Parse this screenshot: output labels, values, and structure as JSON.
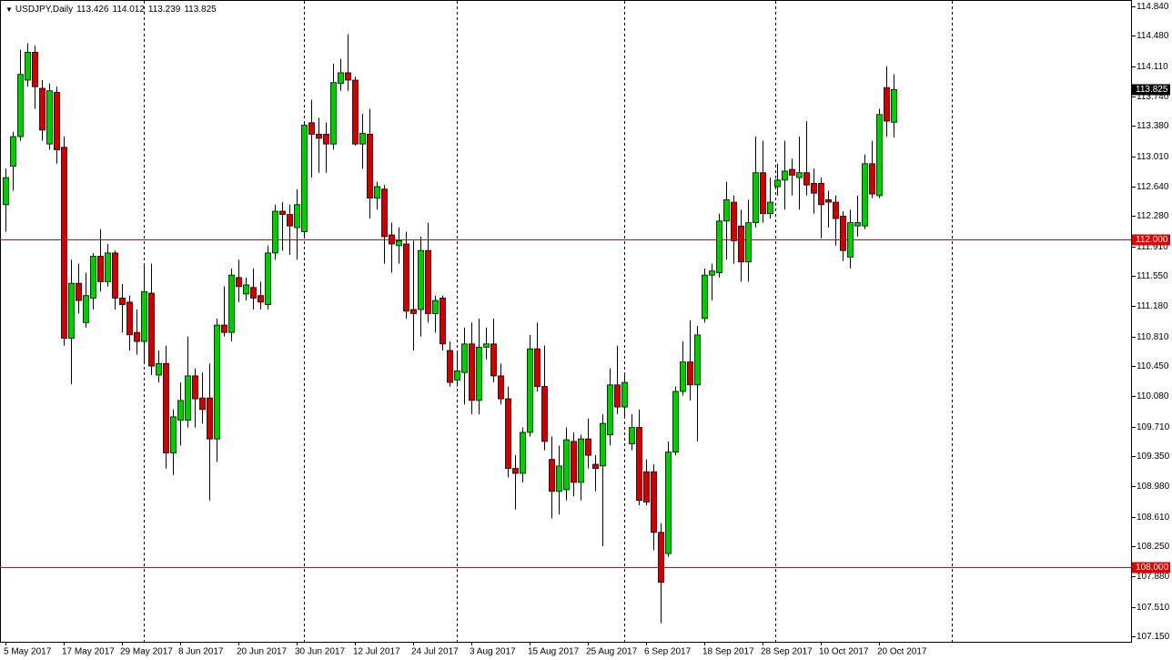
{
  "chart_data": {
    "type": "candlestick",
    "title": "USDJPY,Daily",
    "categories": [
      "5 May 2017",
      null,
      null,
      null,
      null,
      null,
      null,
      null,
      "17 May 2017",
      null,
      null,
      null,
      null,
      null,
      null,
      null,
      "29 May 2017",
      null,
      null,
      null,
      null,
      null,
      null,
      null,
      "8 Jun 2017",
      null,
      null,
      null,
      null,
      null,
      null,
      null,
      "20 Jun 2017",
      null,
      null,
      null,
      null,
      null,
      null,
      null,
      "30 Jun 2017",
      null,
      null,
      null,
      null,
      null,
      null,
      null,
      "12 Jul 2017",
      null,
      null,
      null,
      null,
      null,
      null,
      null,
      "24 Jul 2017",
      null,
      null,
      null,
      null,
      null,
      null,
      null,
      "3 Aug 2017",
      null,
      null,
      null,
      null,
      null,
      null,
      null,
      "15 Aug 2017",
      null,
      null,
      null,
      null,
      null,
      null,
      null,
      "25 Aug 2017",
      null,
      null,
      null,
      null,
      null,
      null,
      null,
      "6 Sep 2017",
      null,
      null,
      null,
      null,
      null,
      null,
      null,
      "18 Sep 2017",
      null,
      null,
      null,
      null,
      null,
      null,
      null,
      "28 Sep 2017",
      null,
      null,
      null,
      null,
      null,
      null,
      null,
      "10 Oct 2017",
      null,
      null,
      null,
      null,
      null,
      null,
      null,
      "20 Oct 2017",
      null,
      null
    ],
    "open": [
      112.42,
      112.89,
      113.25,
      113.94,
      114.28,
      113.84,
      113.16,
      113.79,
      113.12,
      110.79,
      111.46,
      110.98,
      111.28,
      111.79,
      111.48,
      111.83,
      111.28,
      111.23,
      110.86,
      110.75,
      111.34,
      110.34,
      110.48,
      109.39,
      109.79,
      109.79,
      110.33,
      110.06,
      110.06,
      109.56,
      110.95,
      110.86,
      111.53,
      111.33,
      111.41,
      111.31,
      111.2,
      111.83,
      112.34,
      112.3,
      112.14,
      112.09,
      113.42,
      113.28,
      113.28,
      113.16,
      113.9,
      114.03,
      113.94,
      113.16,
      113.28,
      112.5,
      112.61,
      112.05,
      111.92,
      111.94,
      111.14,
      111.14,
      111.86,
      111.09,
      111.28,
      110.64,
      110.28,
      110.37,
      110.72,
      110.03,
      110.68,
      110.72,
      110.33,
      110.05,
      109.2,
      109.14,
      109.64,
      110.66,
      110.2,
      109.31,
      108.92,
      108.94,
      109.53,
      109.03,
      109.56,
      109.25,
      109.23,
      109.61,
      110.22,
      109.95,
      109.5,
      109.7,
      109.16,
      109.16,
      108.42,
      108.16,
      109.4,
      110.14,
      110.5,
      110.22,
      111.03,
      111.56,
      111.59,
      112.22,
      112.45,
      112.16,
      111.72,
      112.2,
      112.81,
      112.31,
      112.64,
      112.72,
      112.85,
      112.75,
      112.81,
      112.68,
      112.68,
      112.48,
      112.45,
      112.28,
      111.78,
      112.16,
      112.16,
      112.92,
      112.53,
      113.85,
      113.426
    ],
    "high": [
      112.86,
      113.31,
      114.31,
      114.39,
      114.36,
      113.94,
      113.9,
      113.86,
      113.25,
      111.75,
      111.7,
      111.59,
      111.83,
      112.12,
      111.94,
      111.86,
      111.45,
      111.31,
      111.14,
      111.7,
      111.7,
      110.64,
      110.7,
      109.92,
      110.25,
      110.81,
      110.42,
      110.37,
      110.48,
      111.03,
      111.42,
      111.64,
      111.75,
      111.53,
      111.64,
      111.48,
      111.92,
      112.42,
      112.45,
      112.42,
      112.61,
      113.42,
      113.7,
      113.48,
      113.42,
      114.14,
      114.2,
      114.5,
      113.98,
      113.53,
      113.59,
      112.7,
      112.66,
      112.2,
      112.14,
      112.09,
      111.98,
      112.03,
      112.2,
      111.31,
      111.31,
      110.75,
      110.64,
      110.92,
      110.98,
      111.03,
      110.92,
      111.03,
      110.48,
      110.2,
      109.36,
      109.7,
      110.83,
      110.98,
      110.7,
      109.59,
      109.48,
      109.7,
      109.64,
      109.61,
      109.81,
      109.36,
      109.86,
      110.42,
      110.7,
      110.37,
      109.86,
      109.92,
      109.31,
      109.25,
      108.53,
      109.53,
      110.2,
      110.75,
      111.01,
      110.94,
      111.64,
      111.7,
      112.31,
      112.7,
      112.53,
      112.36,
      112.48,
      113.25,
      113.2,
      112.75,
      112.92,
      113.2,
      112.98,
      113.25,
      113.44,
      112.86,
      112.75,
      112.59,
      112.53,
      112.34,
      112.36,
      112.53,
      113.03,
      113.2,
      113.59,
      114.11,
      114.012
    ],
    "low": [
      112.09,
      112.59,
      113.2,
      113.86,
      113.59,
      113.2,
      113.09,
      112.92,
      110.7,
      110.23,
      111.09,
      110.92,
      111.14,
      111.36,
      111.42,
      111.14,
      110.86,
      110.64,
      110.59,
      110.48,
      110.34,
      110.25,
      109.2,
      109.12,
      109.48,
      109.7,
      109.7,
      109.75,
      108.81,
      109.28,
      110.81,
      110.75,
      111.23,
      111.25,
      111.14,
      111.14,
      111.14,
      111.75,
      111.86,
      111.81,
      111.75,
      112.03,
      112.75,
      112.81,
      112.81,
      113.09,
      113.81,
      113.81,
      113.14,
      112.86,
      112.25,
      112.36,
      111.7,
      111.59,
      111.7,
      111.03,
      110.64,
      110.81,
      110.98,
      110.86,
      110.64,
      110.2,
      110.2,
      109.98,
      109.86,
      109.86,
      110.53,
      110.25,
      109.98,
      109.09,
      108.7,
      109.03,
      109.59,
      110.14,
      109.42,
      108.59,
      108.64,
      108.81,
      108.86,
      108.81,
      109.2,
      108.92,
      108.25,
      109.48,
      109.86,
      109.81,
      109.42,
      108.75,
      108.75,
      108.2,
      107.31,
      108.12,
      109.36,
      110.09,
      110.03,
      109.53,
      110.98,
      111.25,
      111.53,
      111.75,
      111.7,
      111.48,
      111.48,
      112.14,
      112.2,
      112.25,
      112.53,
      112.36,
      112.53,
      112.36,
      112.53,
      112.31,
      112.01,
      112.14,
      111.92,
      111.73,
      111.64,
      112.03,
      112.12,
      112.5,
      112.5,
      113.25,
      113.239
    ],
    "close": [
      112.75,
      113.25,
      114.01,
      114.28,
      113.86,
      113.33,
      113.81,
      113.09,
      110.79,
      111.46,
      111.25,
      111.31,
      111.79,
      111.48,
      111.83,
      111.28,
      111.2,
      110.83,
      110.75,
      111.36,
      110.45,
      110.48,
      109.39,
      109.83,
      110.03,
      110.33,
      110.05,
      109.92,
      109.56,
      110.95,
      110.86,
      111.56,
      111.42,
      111.44,
      111.28,
      111.23,
      111.83,
      112.34,
      112.3,
      112.16,
      112.42,
      113.39,
      113.28,
      113.23,
      113.16,
      113.91,
      114.03,
      113.94,
      113.16,
      113.29,
      112.5,
      112.64,
      112.03,
      111.94,
      111.98,
      111.12,
      111.09,
      111.86,
      111.09,
      111.25,
      110.72,
      110.25,
      110.39,
      110.72,
      110.03,
      110.68,
      110.72,
      110.33,
      110.05,
      109.2,
      109.14,
      109.64,
      110.66,
      110.2,
      109.53,
      108.92,
      109.23,
      109.55,
      109.03,
      109.56,
      109.36,
      109.2,
      109.75,
      110.22,
      109.95,
      110.25,
      109.7,
      108.81,
      108.79,
      108.42,
      107.81,
      109.4,
      110.14,
      110.5,
      110.22,
      110.83,
      111.56,
      111.61,
      112.22,
      112.48,
      111.98,
      111.72,
      112.2,
      112.81,
      112.31,
      112.45,
      112.72,
      112.83,
      112.78,
      112.81,
      112.66,
      112.56,
      112.42,
      112.45,
      112.25,
      111.86,
      112.2,
      112.2,
      112.92,
      112.55,
      113.52,
      113.44,
      113.825
    ],
    "colors": {
      "up": "#00cc00",
      "down": "#cc0000",
      "line": "#e00000"
    },
    "ylim": [
      107.084,
      114.918
    ],
    "yticks": [
      {
        "value": 114.84,
        "label": "114.840"
      },
      {
        "value": 114.48,
        "label": "114.480"
      },
      {
        "value": 114.11,
        "label": "114.110"
      },
      {
        "value": 113.74,
        "label": "113.740"
      },
      {
        "value": 113.38,
        "label": "113.380"
      },
      {
        "value": 113.01,
        "label": "113.010"
      },
      {
        "value": 112.64,
        "label": "112.640"
      },
      {
        "value": 112.28,
        "label": "112.280"
      },
      {
        "value": 111.91,
        "label": "111.910"
      },
      {
        "value": 111.55,
        "label": "111.550"
      },
      {
        "value": 111.18,
        "label": "111.180"
      },
      {
        "value": 110.81,
        "label": "110.810"
      },
      {
        "value": 110.45,
        "label": "110.450"
      },
      {
        "value": 110.08,
        "label": "110.080"
      },
      {
        "value": 109.71,
        "label": "109.710"
      },
      {
        "value": 109.35,
        "label": "109.350"
      },
      {
        "value": 108.98,
        "label": "108.980"
      },
      {
        "value": 108.61,
        "label": "108.610"
      },
      {
        "value": 108.25,
        "label": "108.250"
      },
      {
        "value": 107.88,
        "label": "107.880"
      },
      {
        "value": 107.51,
        "label": "107.510"
      },
      {
        "value": 107.15,
        "label": "107.150"
      }
    ],
    "hlines": [
      {
        "value": 112,
        "label": "112.000"
      },
      {
        "value": 108,
        "label": "108.000"
      }
    ],
    "grid": false
  }
}
